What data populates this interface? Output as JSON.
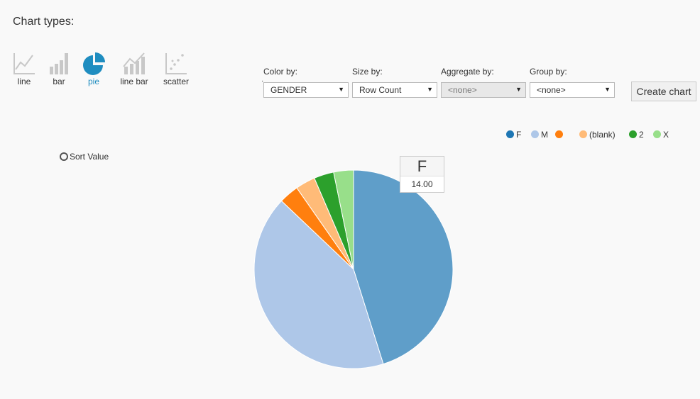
{
  "title": "Chart types:",
  "chart_types": [
    {
      "label": "line",
      "icon": "line-chart-icon",
      "active": false
    },
    {
      "label": "bar",
      "icon": "bar-chart-icon",
      "active": false
    },
    {
      "label": "pie",
      "icon": "pie-chart-icon",
      "active": true
    },
    {
      "label": "line bar",
      "icon": "line-bar-chart-icon",
      "active": false
    },
    {
      "label": "scatter",
      "icon": "scatter-chart-icon",
      "active": false
    }
  ],
  "controls": {
    "color_by": {
      "label": "Color by:",
      "value": "GENDER"
    },
    "size_by": {
      "label": "Size by:",
      "value": "Row Count"
    },
    "aggregate_by": {
      "label": "Aggregate by:",
      "value": "<none>",
      "disabled": true
    },
    "group_by": {
      "label": "Group by:",
      "value": "<none>"
    },
    "create_label": "Create chart"
  },
  "sort_label": "Sort Value",
  "tooltip": {
    "category": "F",
    "value": "14.00"
  },
  "colors": {
    "accent": "#1f8dc0",
    "icon_gray": "#c8c8c8"
  },
  "chart_data": {
    "type": "pie",
    "categories": [
      "F",
      "M",
      "",
      "(blank)",
      "2",
      "X"
    ],
    "values": [
      14,
      13,
      1,
      1,
      1,
      1
    ],
    "legend_colors": [
      "#1f77b4",
      "#aec7e8",
      "#ff7f0e",
      "#ffbb78",
      "#2ca02c",
      "#98df8a"
    ],
    "slice_colors": [
      "#5f9ec9",
      "#aec7e8",
      "#ff7f0e",
      "#ffbb78",
      "#2ca02c",
      "#98df8a"
    ],
    "legend_position": "top-right"
  }
}
